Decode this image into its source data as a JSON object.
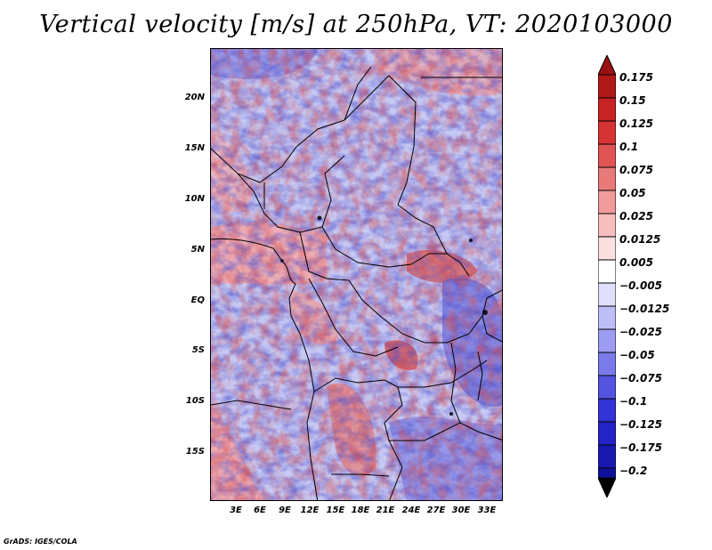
{
  "title": "Vertical velocity [m/s] at 250hPa, VT: 2020103000",
  "credit": "GrADS: IGES/COLA",
  "map": {
    "lat_labels": [
      "20N",
      "15N",
      "10N",
      "5N",
      "EQ",
      "5S",
      "10S",
      "15S"
    ],
    "lon_labels": [
      "3E",
      "6E",
      "9E",
      "12E",
      "15E",
      "18E",
      "21E",
      "24E",
      "27E",
      "30E",
      "33E"
    ]
  },
  "colorbar": {
    "labels": [
      "0.175",
      "0.15",
      "0.125",
      "0.1",
      "0.075",
      "0.05",
      "0.025",
      "0.0125",
      "0.005",
      "−0.005",
      "−0.0125",
      "−0.025",
      "−0.05",
      "−0.075",
      "−0.1",
      "−0.125",
      "−0.175",
      "−0.2"
    ],
    "colors": [
      "#9b1010",
      "#b11818",
      "#c62323",
      "#d63434",
      "#e05454",
      "#e87a7a",
      "#f19c9c",
      "#f7bebe",
      "#fce0e0",
      "#ffffff",
      "#e0e0fc",
      "#bebef7",
      "#9c9cf1",
      "#7a7ae8",
      "#5454e0",
      "#3434d6",
      "#2323c6",
      "#1818b1",
      "#10109b"
    ]
  }
}
